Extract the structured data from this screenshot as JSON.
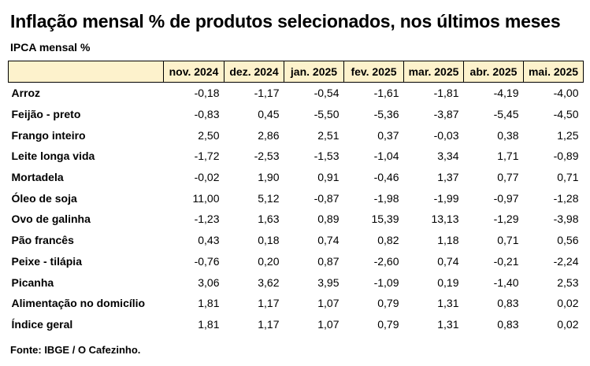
{
  "title": "Inflação mensal % de produtos selecionados, nos últimos meses",
  "subtitle": "IPCA mensal %",
  "source": "Fonte: IBGE / O Cafezinho.",
  "colors": {
    "header_bg": "#fdf2cc",
    "border": "#000000"
  },
  "chart_data": {
    "type": "table",
    "title": "Inflação mensal % de produtos selecionados, nos últimos meses",
    "subtitle": "IPCA mensal %",
    "columns": [
      "",
      "nov. 2024",
      "dez. 2024",
      "jan. 2025",
      "fev. 2025",
      "mar. 2025",
      "abr. 2025",
      "mai. 2025"
    ],
    "rows": [
      {
        "label": "Arroz",
        "values": [
          "-0,18",
          "-1,17",
          "-0,54",
          "-1,61",
          "-1,81",
          "-4,19",
          "-4,00"
        ]
      },
      {
        "label": "Feijão - preto",
        "values": [
          "-0,83",
          "0,45",
          "-5,50",
          "-5,36",
          "-3,87",
          "-5,45",
          "-4,50"
        ]
      },
      {
        "label": "Frango inteiro",
        "values": [
          "2,50",
          "2,86",
          "2,51",
          "0,37",
          "-0,03",
          "0,38",
          "1,25"
        ]
      },
      {
        "label": "Leite longa vida",
        "values": [
          "-1,72",
          "-2,53",
          "-1,53",
          "-1,04",
          "3,34",
          "1,71",
          "-0,89"
        ]
      },
      {
        "label": "Mortadela",
        "values": [
          "-0,02",
          "1,90",
          "0,91",
          "-0,46",
          "1,37",
          "0,77",
          "0,71"
        ]
      },
      {
        "label": "Óleo de soja",
        "values": [
          "11,00",
          "5,12",
          "-0,87",
          "-1,98",
          "-1,99",
          "-0,97",
          "-1,28"
        ]
      },
      {
        "label": "Ovo de galinha",
        "values": [
          "-1,23",
          "1,63",
          "0,89",
          "15,39",
          "13,13",
          "-1,29",
          "-3,98"
        ]
      },
      {
        "label": "Pão francês",
        "values": [
          "0,43",
          "0,18",
          "0,74",
          "0,82",
          "1,18",
          "0,71",
          "0,56"
        ]
      },
      {
        "label": "Peixe - tilápia",
        "values": [
          "-0,76",
          "0,20",
          "0,87",
          "-2,60",
          "0,74",
          "-0,21",
          "-2,24"
        ]
      },
      {
        "label": "Picanha",
        "values": [
          "3,06",
          "3,62",
          "3,95",
          "-1,09",
          "0,19",
          "-1,40",
          "2,53"
        ]
      },
      {
        "label": "Alimentação no domicílio",
        "values": [
          "1,81",
          "1,17",
          "1,07",
          "0,79",
          "1,31",
          "0,83",
          "0,02"
        ]
      },
      {
        "label": "Índice geral",
        "values": [
          "1,81",
          "1,17",
          "1,07",
          "0,79",
          "1,31",
          "0,83",
          "0,02"
        ]
      }
    ]
  }
}
